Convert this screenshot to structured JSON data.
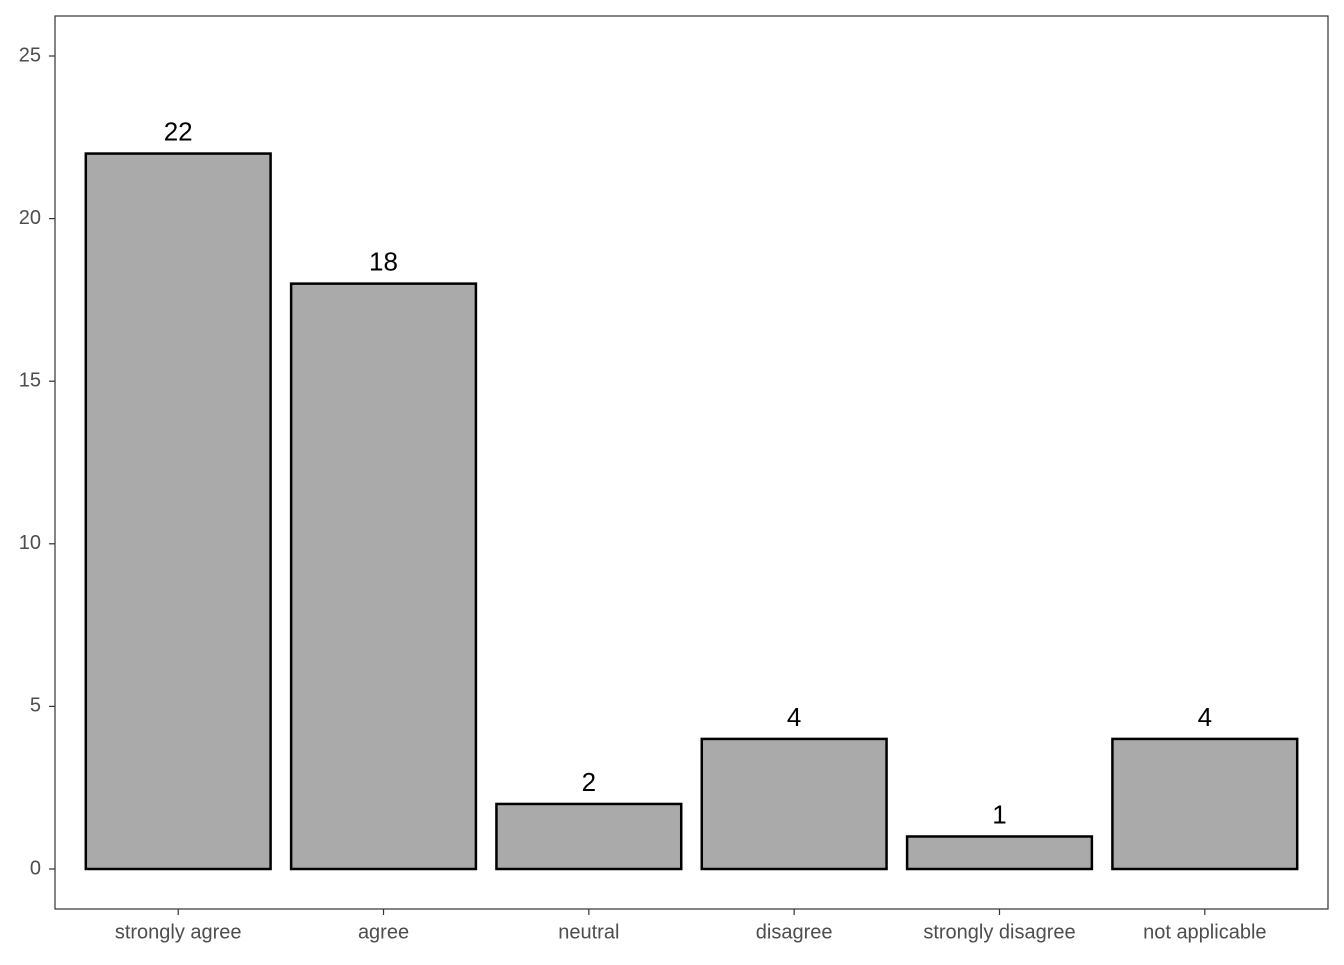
{
  "chart_data": {
    "type": "bar",
    "categories": [
      "strongly agree",
      "agree",
      "neutral",
      "disagree",
      "strongly disagree",
      "not applicable"
    ],
    "values": [
      22,
      18,
      2,
      4,
      1,
      4
    ],
    "color": "#aaaaaa",
    "ylim": [
      -1.23,
      26.23
    ],
    "yticks": [
      0,
      5,
      10,
      15,
      20,
      25
    ],
    "grid": false
  }
}
